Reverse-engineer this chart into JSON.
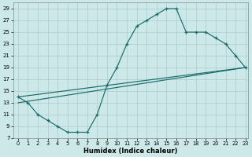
{
  "xlabel": "Humidex (Indice chaleur)",
  "bg_color": "#cce8e8",
  "grid_color": "#aacccc",
  "line_color": "#1a6b6b",
  "xlim_min": -0.5,
  "xlim_max": 23.3,
  "ylim_min": 7,
  "ylim_max": 30,
  "xticks": [
    0,
    1,
    2,
    3,
    4,
    5,
    6,
    7,
    8,
    9,
    10,
    11,
    12,
    13,
    14,
    15,
    16,
    17,
    18,
    19,
    20,
    21,
    22,
    23
  ],
  "yticks": [
    7,
    9,
    11,
    13,
    15,
    17,
    19,
    21,
    23,
    25,
    27,
    29
  ],
  "curve1_x": [
    0,
    1,
    2,
    3,
    4,
    5,
    6,
    7,
    8,
    9,
    10,
    11,
    12,
    13,
    14,
    15,
    16,
    17,
    18,
    19,
    20,
    21,
    22,
    23
  ],
  "curve1_y": [
    14,
    13,
    11,
    10,
    9,
    8,
    8,
    8,
    11,
    16,
    19,
    23,
    26,
    27,
    28,
    29,
    29,
    25,
    25,
    25,
    24,
    23,
    21,
    19
  ],
  "line2_x": [
    0,
    23
  ],
  "line2_y": [
    14,
    19
  ],
  "line3_x": [
    0,
    23
  ],
  "line3_y": [
    13,
    19
  ]
}
